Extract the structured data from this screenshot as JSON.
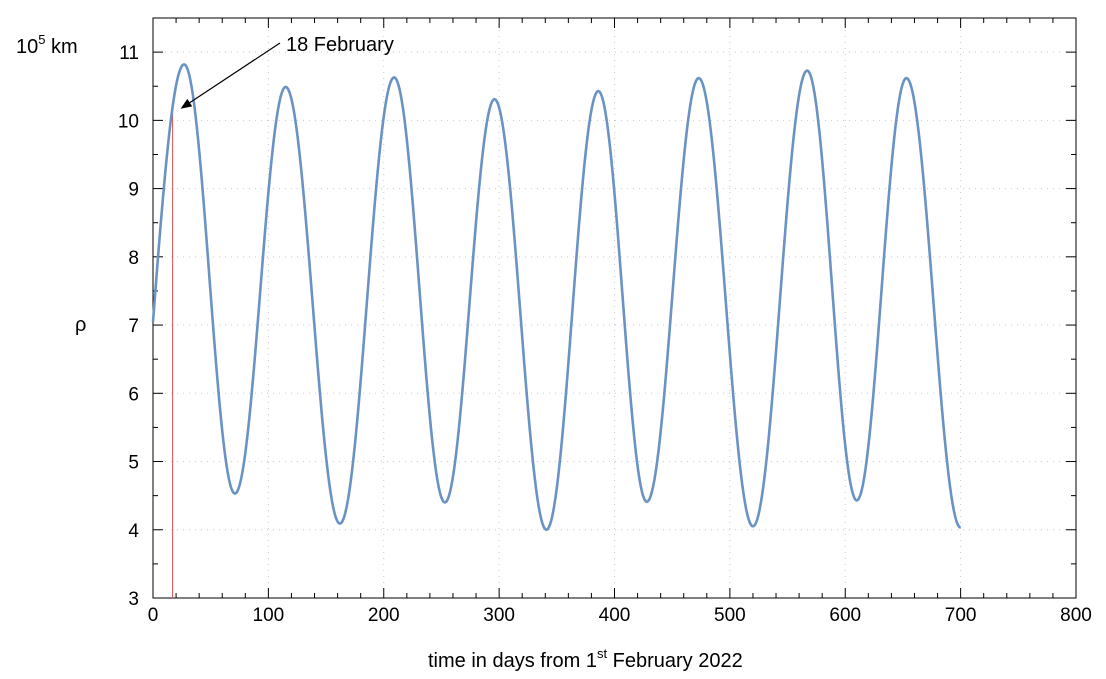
{
  "chart_data": {
    "type": "line",
    "title": "",
    "xlabel": {
      "prefix": "time in days from 1",
      "sup": "st",
      "suffix": " February 2022"
    },
    "ylabel": "ρ",
    "yunit": {
      "base": "10",
      "sup": "5",
      "unit": " km"
    },
    "xlim": [
      0,
      800
    ],
    "ylim": [
      3,
      11.5
    ],
    "xticks": [
      0,
      100,
      200,
      300,
      400,
      500,
      600,
      700,
      800
    ],
    "yticks": [
      3,
      4,
      5,
      6,
      7,
      8,
      9,
      10,
      11
    ],
    "grid": true,
    "colors": {
      "series": "#6a93c4",
      "marker": "#d9534f",
      "axis": "#000000",
      "grid": "#c8c8c8"
    },
    "series": [
      {
        "extrema": [
          [
            0,
            7.05
          ],
          [
            27,
            10.82
          ],
          [
            71,
            4.53
          ],
          [
            115,
            10.49
          ],
          [
            162,
            4.09
          ],
          [
            209,
            10.63
          ],
          [
            253,
            4.4
          ],
          [
            296,
            10.31
          ],
          [
            341,
            4.0
          ],
          [
            386,
            10.43
          ],
          [
            428,
            4.41
          ],
          [
            473,
            10.62
          ],
          [
            520,
            4.05
          ],
          [
            567,
            10.73
          ],
          [
            610,
            4.43
          ],
          [
            653,
            10.62
          ],
          [
            700,
            4.03
          ]
        ]
      }
    ],
    "annotation": {
      "text": "18 February",
      "x": 17,
      "y": 10.2
    }
  }
}
